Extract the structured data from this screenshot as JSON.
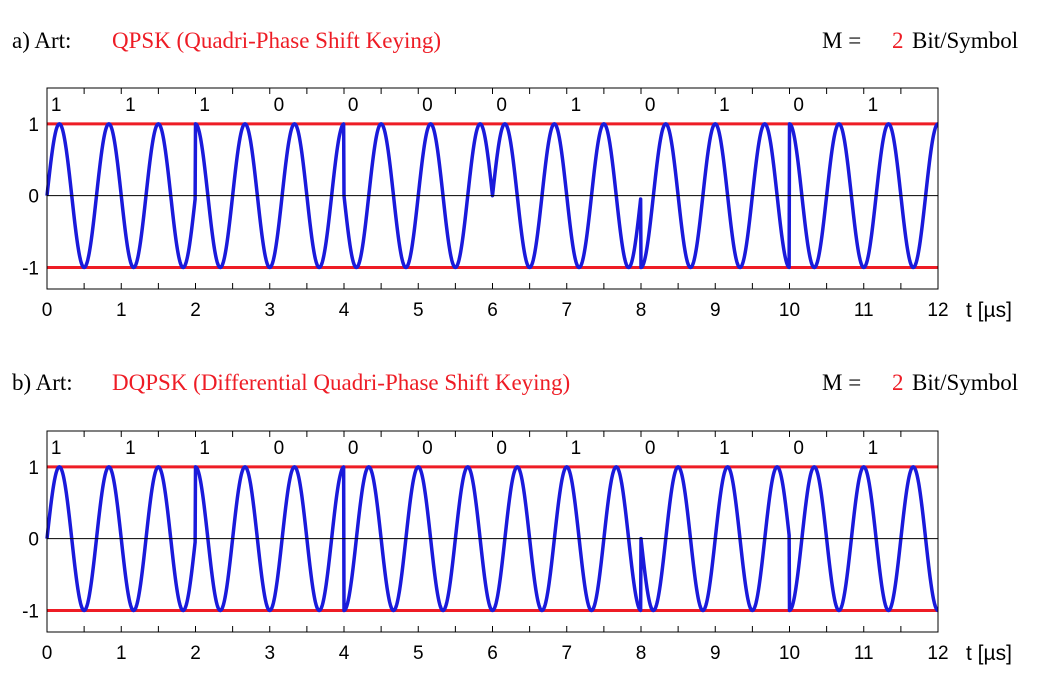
{
  "panels": [
    {
      "prefix": "a)  Art:",
      "title": "QPSK (Quadri-Phase Shift Keying)",
      "m_label": "M =",
      "m_value": "2",
      "m_unit": "Bit/Symbol"
    },
    {
      "prefix": "b)  Art:",
      "title": "DQPSK (Differential Quadri-Phase Shift Keying)",
      "m_label": "M =",
      "m_value": "2",
      "m_unit": "Bit/Symbol"
    }
  ],
  "colors": {
    "title": "#ee1c25",
    "signal": "#1a1adb",
    "reference": "#ee1c25",
    "axis": "#000000"
  },
  "chart_data": [
    {
      "type": "line",
      "xlabel": "t [µs]",
      "xlim": [
        0,
        12
      ],
      "ylim": [
        -1.3,
        1.5
      ],
      "x_ticks": [
        "0",
        "1",
        "2",
        "3",
        "4",
        "5",
        "6",
        "7",
        "8",
        "9",
        "10",
        "11",
        "12"
      ],
      "y_ticks": [
        "1",
        "0",
        "-1"
      ],
      "bits": [
        "1",
        "1",
        "1",
        "0",
        "0",
        "0",
        "0",
        "1",
        "0",
        "1",
        "0",
        "1"
      ],
      "reference_lines": [
        1,
        -1
      ],
      "series": [
        {
          "kind": "sine",
          "cycles_per_symbol": 1.5,
          "symbol_duration_us": 1,
          "symbols": 6,
          "phases_deg": [
            0,
            90,
            180,
            0,
            270,
            90
          ]
        }
      ]
    },
    {
      "type": "line",
      "xlabel": "t [µs]",
      "xlim": [
        0,
        12
      ],
      "ylim": [
        -1.3,
        1.5
      ],
      "x_ticks": [
        "0",
        "1",
        "2",
        "3",
        "4",
        "5",
        "6",
        "7",
        "8",
        "9",
        "10",
        "11",
        "12"
      ],
      "y_ticks": [
        "1",
        "0",
        "-1"
      ],
      "bits": [
        "1",
        "1",
        "1",
        "0",
        "0",
        "0",
        "0",
        "1",
        "0",
        "1",
        "0",
        "1"
      ],
      "reference_lines": [
        1,
        -1
      ],
      "series": [
        {
          "kind": "sine",
          "cycles_per_symbol": 1.5,
          "symbol_duration_us": 1,
          "symbols": 6,
          "phases_deg": [
            0,
            90,
            270,
            270,
            180,
            270
          ]
        }
      ]
    }
  ]
}
